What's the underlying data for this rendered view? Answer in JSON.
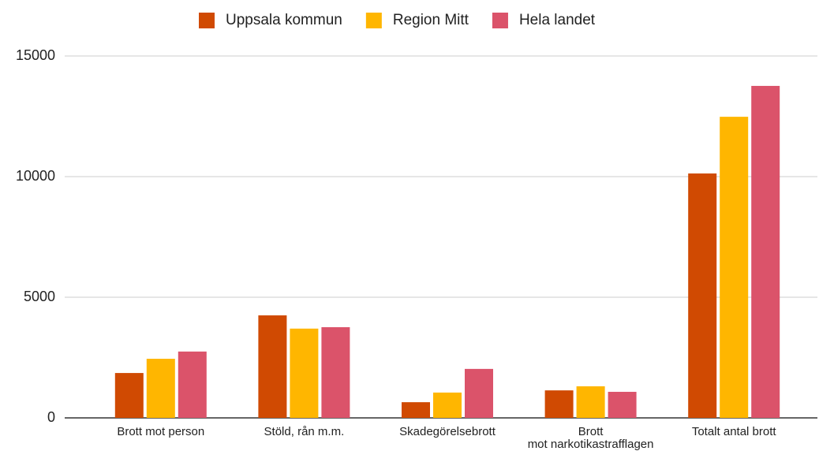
{
  "chart_data": {
    "type": "bar",
    "categories": [
      "Brott mot person",
      "Stöld, rån m.m.",
      "Skadegörelsebrott",
      "Brott mot narkotikastrafflagen",
      "Totalt antal brott"
    ],
    "series": [
      {
        "name": "Uppsala kommun",
        "color": "#d04a02",
        "values": [
          1860,
          4250,
          650,
          1140,
          10130
        ]
      },
      {
        "name": "Region Mitt",
        "color": "#ffb600",
        "values": [
          2450,
          3700,
          1050,
          1310,
          12480
        ]
      },
      {
        "name": "Hela landet",
        "color": "#db536a",
        "values": [
          2750,
          3760,
          2030,
          1080,
          13760
        ]
      }
    ],
    "ylim": [
      0,
      15000
    ],
    "yticks": [
      0,
      5000,
      10000,
      15000
    ],
    "grid": true,
    "legend": "top"
  }
}
